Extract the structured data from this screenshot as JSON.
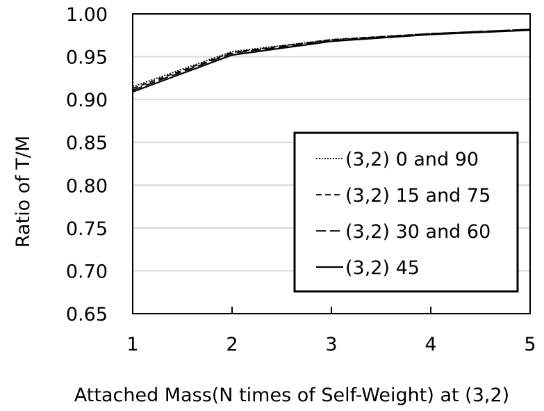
{
  "chart_data": {
    "type": "line",
    "title": "",
    "xlabel": "Attached Mass(N times of Self-Weight) at (3,2)",
    "ylabel": "Ratio of  T/M",
    "x": [
      1,
      2,
      3,
      4,
      5
    ],
    "xticks": [
      "1",
      "2",
      "3",
      "4",
      "5"
    ],
    "yticks": [
      "0.65",
      "0.70",
      "0.75",
      "0.80",
      "0.85",
      "0.90",
      "0.95",
      "1.00"
    ],
    "xlim": [
      1,
      5
    ],
    "ylim": [
      0.65,
      1.0
    ],
    "grid": "horizontal",
    "legend_position": "inside-right",
    "series": [
      {
        "name": "(3,2) 0 and 90",
        "style": "dotted",
        "color": "#000000",
        "values": [
          0.915,
          0.956,
          0.97,
          0.977,
          0.982
        ]
      },
      {
        "name": "(3,2) 15 and 75",
        "style": "short-dash",
        "color": "#000000",
        "values": [
          0.913,
          0.955,
          0.97,
          0.977,
          0.982
        ]
      },
      {
        "name": "(3,2) 30 and 60",
        "style": "long-dash",
        "color": "#000000",
        "values": [
          0.911,
          0.954,
          0.969,
          0.977,
          0.982
        ]
      },
      {
        "name": "(3,2) 45",
        "style": "solid",
        "color": "#000000",
        "values": [
          0.909,
          0.952,
          0.968,
          0.976,
          0.981
        ]
      }
    ]
  }
}
